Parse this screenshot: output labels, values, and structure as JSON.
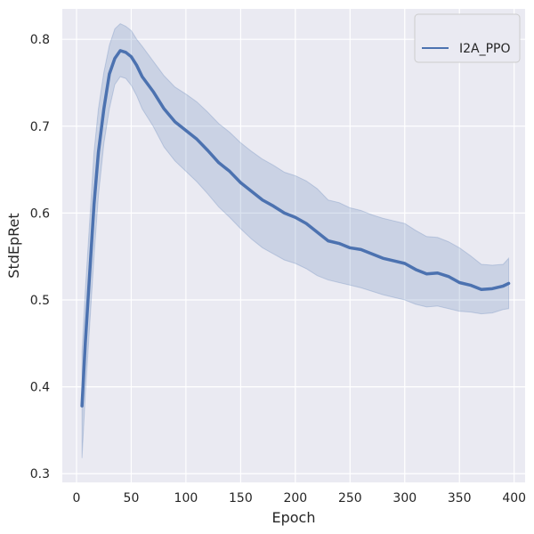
{
  "chart_data": {
    "type": "line",
    "title": "",
    "xlabel": "Epoch",
    "ylabel": "StdEpRet",
    "xlim": [
      -13,
      410
    ],
    "ylim": [
      0.29,
      0.835
    ],
    "xticks": [
      0,
      50,
      100,
      150,
      200,
      250,
      300,
      350,
      400
    ],
    "yticks": [
      0.3,
      0.4,
      0.5,
      0.6,
      0.7,
      0.8
    ],
    "grid": true,
    "legend_position": "top-right",
    "colors": {
      "background": "#eaeaf2",
      "line": "#4c72b0",
      "band": "#4c72b0",
      "grid": "#ffffff"
    },
    "series": [
      {
        "name": "I2A_PPO",
        "x": [
          5,
          8,
          12,
          16,
          20,
          25,
          30,
          35,
          40,
          45,
          50,
          55,
          60,
          70,
          80,
          90,
          100,
          110,
          120,
          130,
          140,
          150,
          160,
          170,
          180,
          190,
          200,
          210,
          220,
          230,
          240,
          250,
          260,
          270,
          280,
          290,
          300,
          310,
          320,
          330,
          340,
          350,
          360,
          370,
          380,
          390,
          395
        ],
        "y": [
          0.378,
          0.45,
          0.53,
          0.61,
          0.67,
          0.72,
          0.76,
          0.778,
          0.787,
          0.785,
          0.78,
          0.77,
          0.757,
          0.74,
          0.72,
          0.705,
          0.695,
          0.685,
          0.672,
          0.658,
          0.648,
          0.635,
          0.625,
          0.615,
          0.608,
          0.6,
          0.595,
          0.588,
          0.578,
          0.568,
          0.565,
          0.56,
          0.558,
          0.553,
          0.548,
          0.545,
          0.542,
          0.535,
          0.53,
          0.531,
          0.527,
          0.52,
          0.517,
          0.512,
          0.513,
          0.516,
          0.519
        ],
        "lower": [
          0.318,
          0.39,
          0.47,
          0.55,
          0.62,
          0.68,
          0.72,
          0.748,
          0.757,
          0.755,
          0.747,
          0.735,
          0.72,
          0.7,
          0.676,
          0.66,
          0.648,
          0.636,
          0.622,
          0.607,
          0.595,
          0.582,
          0.57,
          0.56,
          0.553,
          0.546,
          0.542,
          0.536,
          0.528,
          0.523,
          0.52,
          0.517,
          0.514,
          0.51,
          0.506,
          0.503,
          0.5,
          0.495,
          0.492,
          0.493,
          0.49,
          0.487,
          0.486,
          0.484,
          0.485,
          0.489,
          0.49
        ],
        "upper": [
          0.44,
          0.51,
          0.59,
          0.67,
          0.72,
          0.762,
          0.793,
          0.812,
          0.818,
          0.815,
          0.81,
          0.8,
          0.792,
          0.775,
          0.758,
          0.745,
          0.737,
          0.728,
          0.716,
          0.703,
          0.693,
          0.681,
          0.671,
          0.662,
          0.655,
          0.647,
          0.643,
          0.637,
          0.628,
          0.615,
          0.612,
          0.606,
          0.603,
          0.598,
          0.594,
          0.591,
          0.588,
          0.58,
          0.573,
          0.572,
          0.567,
          0.56,
          0.551,
          0.541,
          0.54,
          0.541,
          0.548
        ]
      }
    ]
  }
}
